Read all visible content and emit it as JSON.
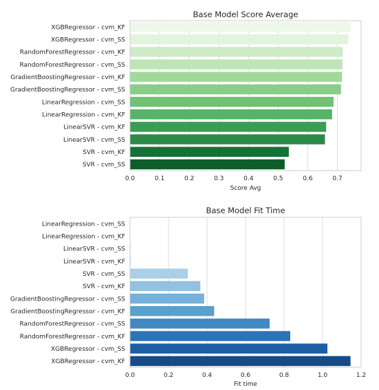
{
  "chart_data": [
    {
      "type": "bar",
      "orientation": "horizontal",
      "title": "Base Model Score Average",
      "xlabel": "Score Avg",
      "ylabel": "",
      "xlim": [
        0,
        0.78
      ],
      "xticks": [
        "0.0",
        "0.1",
        "0.2",
        "0.3",
        "0.4",
        "0.5",
        "0.6",
        "0.7"
      ],
      "xtick_values": [
        0.0,
        0.1,
        0.2,
        0.3,
        0.4,
        0.5,
        0.6,
        0.7
      ],
      "grid": true,
      "palette": "Greens",
      "categories": [
        "XGBRegressor - cvm_KF",
        "XGBRegressor - cvm_SS",
        "RandomForestRegressor - cvm_KF",
        "RandomForestRegressor - cvm_SS",
        "GradientBoostingRegressor - cvm_KF",
        "GradientBoostingRegressor - cvm_SS",
        "LinearRegression - cvm_SS",
        "LinearRegression - cvm_KF",
        "LinearSVR - cvm_KF",
        "LinearSVR - cvm_SS",
        "SVR - cvm_KF",
        "SVR - cvm_SS"
      ],
      "values": [
        0.745,
        0.737,
        0.718,
        0.717,
        0.716,
        0.712,
        0.687,
        0.682,
        0.662,
        0.658,
        0.536,
        0.522
      ],
      "colors": [
        "#eef8ea",
        "#e3f4de",
        "#cdebc6",
        "#bfe5b7",
        "#a1d99b",
        "#8acd87",
        "#71c073",
        "#56b367",
        "#3b9c55",
        "#2e8949",
        "#157136",
        "#0e5c29"
      ]
    },
    {
      "type": "bar",
      "orientation": "horizontal",
      "title": "Base Model Fit Time",
      "xlabel": "Fit time",
      "ylabel": "",
      "xlim": [
        0,
        1.2
      ],
      "xticks": [
        "0.0",
        "0.2",
        "0.4",
        "0.6",
        "0.8",
        "1.0",
        "1.2"
      ],
      "xtick_values": [
        0.0,
        0.2,
        0.4,
        0.6,
        0.8,
        1.0,
        1.2
      ],
      "grid": true,
      "palette": "Blues",
      "categories": [
        "LinearRegression - cvm_SS",
        "LinearRegression - cvm_KF",
        "LinearSVR - cvm_SS",
        "LinearSVR - cvm_KF",
        "SVR - cvm_SS",
        "SVR - cvm_KF",
        "GradientBoostingRegressor - cvm_SS",
        "GradientBoostingRegressor - cvm_KF",
        "RandomForestRegressor - cvm_SS",
        "RandomForestRegressor - cvm_KF",
        "XGBRegressor - cvm_SS",
        "XGBRegressor - cvm_KF"
      ],
      "values": [
        0.001,
        0.001,
        0.004,
        0.004,
        0.3,
        0.365,
        0.385,
        0.437,
        0.725,
        0.832,
        1.025,
        1.145
      ],
      "colors": [
        "#eff5fb",
        "#e3eef8",
        "#d6e6f4",
        "#c8ddf0",
        "#abcfe6",
        "#93c1df",
        "#75b1d8",
        "#5b9fcd",
        "#4288c2",
        "#2d74b6",
        "#1c5fa6",
        "#164b88"
      ]
    }
  ]
}
